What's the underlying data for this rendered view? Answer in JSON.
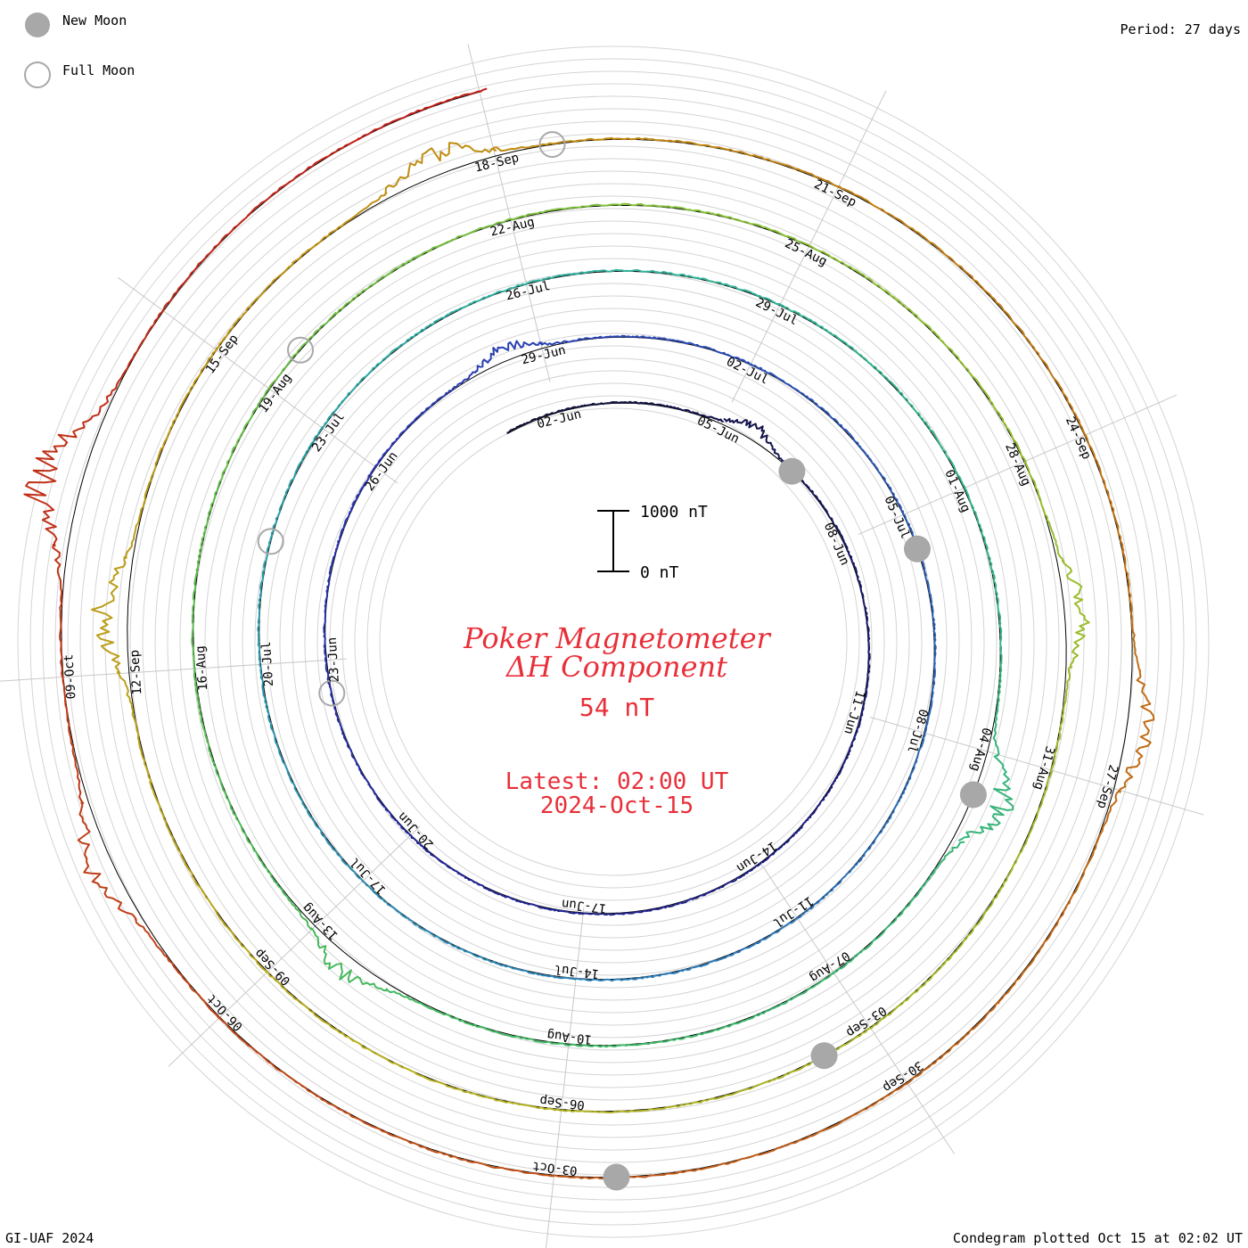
{
  "header": {
    "legend_new_moon": "New Moon",
    "legend_full_moon": "Full Moon",
    "period": "Period: 27 days"
  },
  "footer": {
    "left": "GI-UAF 2024",
    "right": "Condegram plotted Oct 15 at 02:02 UT"
  },
  "center": {
    "title_line1": "Poker Magnetometer",
    "title_line2": "ΔH Component",
    "value": "54 nT",
    "latest_line1": "Latest: 02:00 UT",
    "latest_line2": "2024-Oct-15",
    "scale_top": "1000 nT",
    "scale_bottom": "0 nT"
  },
  "chart_data": {
    "type": "line",
    "layout": "spiral condegram",
    "period_days": 27,
    "title": "Poker Magnetometer ΔH Component",
    "start": "2024-06-01",
    "end": "2024-10-15",
    "latest_value_nT": 54,
    "scale_bar_nT": [
      0,
      1000
    ],
    "date_labels": [
      "02-Jun",
      "05-Jun",
      "08-Jun",
      "11-Jun",
      "14-Jun",
      "17-Jun",
      "20-Jun",
      "23-Jun",
      "26-Jun",
      "29-Jun",
      "02-Jul",
      "05-Jul",
      "08-Jul",
      "11-Jul",
      "14-Jul",
      "17-Jul",
      "20-Jul",
      "23-Jul",
      "26-Jul",
      "29-Jul",
      "01-Aug",
      "04-Aug",
      "07-Aug",
      "10-Aug",
      "13-Aug",
      "16-Aug",
      "19-Aug",
      "22-Aug",
      "25-Aug",
      "28-Aug",
      "31-Aug",
      "03-Sep",
      "06-Sep",
      "09-Sep",
      "12-Sep",
      "15-Sep",
      "18-Sep",
      "21-Sep",
      "24-Sep",
      "27-Sep",
      "30-Sep",
      "03-Oct",
      "06-Oct",
      "09-Oct"
    ],
    "new_moons": [
      "2024-06-06",
      "2024-07-05",
      "2024-08-04",
      "2024-09-03",
      "2024-10-02"
    ],
    "full_moons": [
      "2024-06-22",
      "2024-07-21",
      "2024-08-19",
      "2024-09-18"
    ],
    "storm_events": [
      {
        "date": "2024-06-05",
        "peak_nT": 300
      },
      {
        "date": "2024-06-28",
        "peak_nT": 300
      },
      {
        "date": "2024-08-04",
        "peak_nT": 700
      },
      {
        "date": "2024-08-12",
        "peak_nT": 400
      },
      {
        "date": "2024-08-29",
        "peak_nT": 400
      },
      {
        "date": "2024-09-12",
        "peak_nT": 600
      },
      {
        "date": "2024-09-17",
        "peak_nT": 500
      },
      {
        "date": "2024-09-26",
        "peak_nT": 450
      },
      {
        "date": "2024-10-07",
        "peak_nT": 500
      },
      {
        "date": "2024-10-10",
        "peak_nT": 1000
      }
    ]
  }
}
